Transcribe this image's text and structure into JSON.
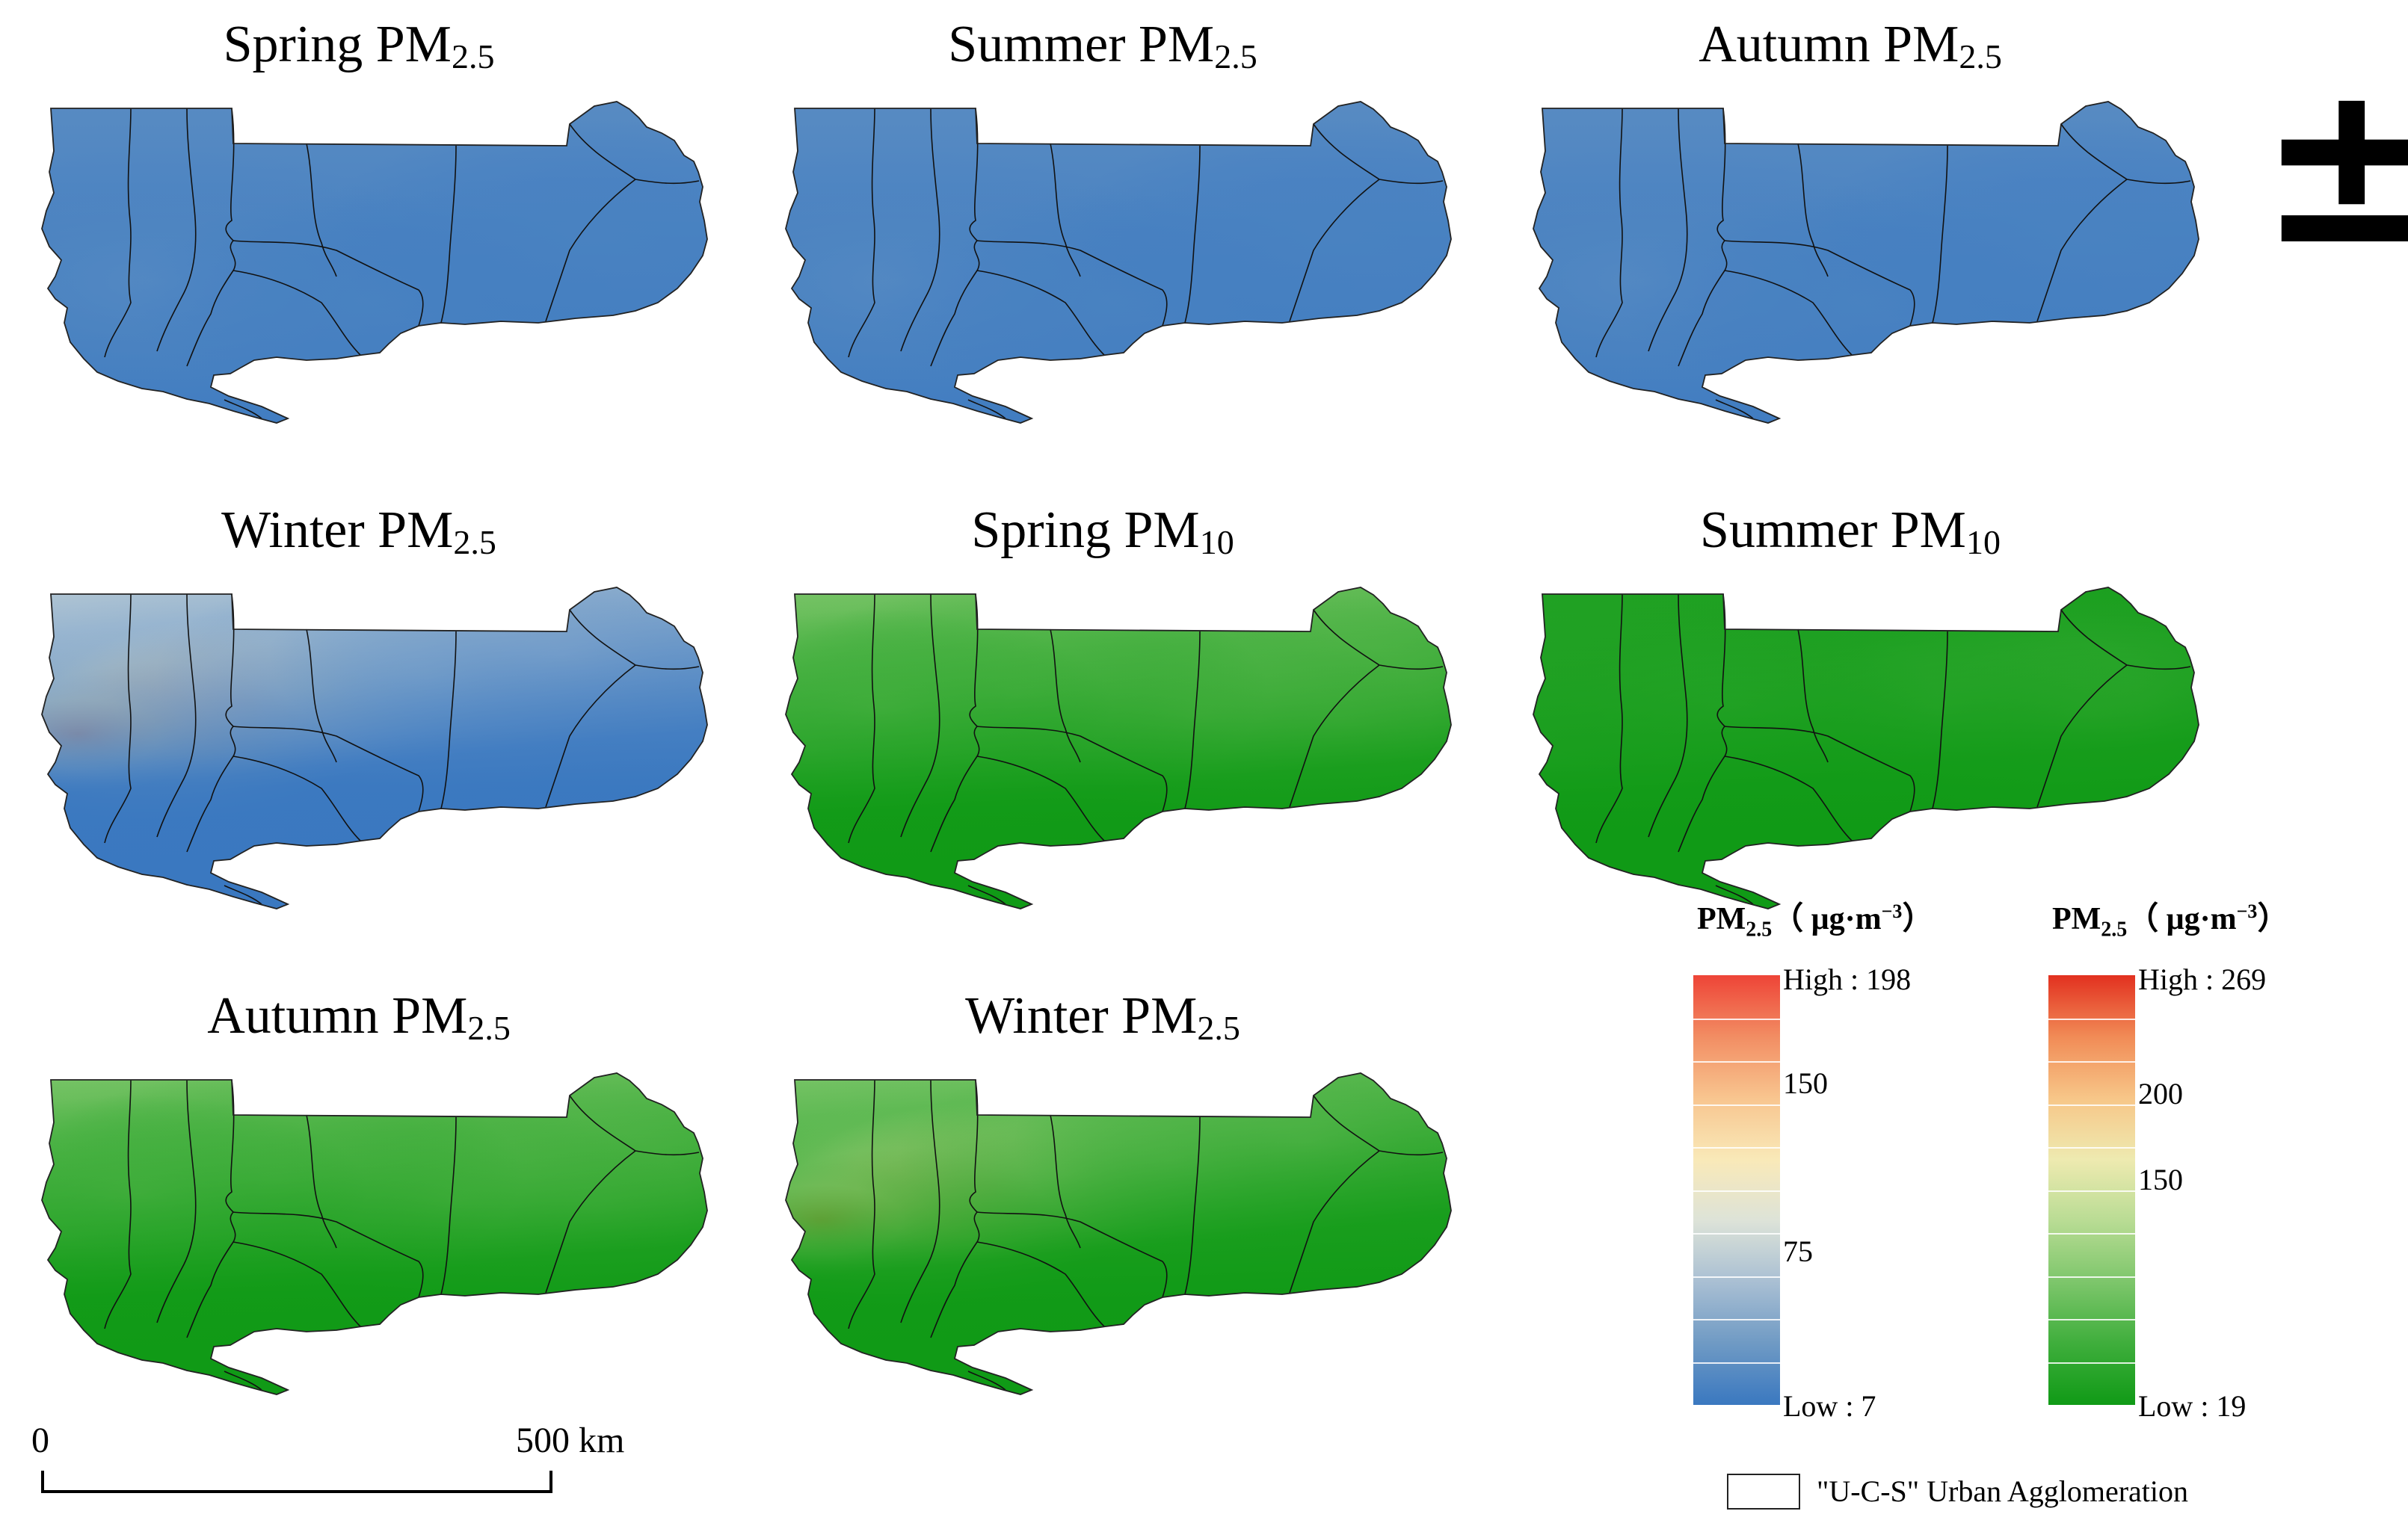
{
  "maps": [
    {
      "id": "spring-pm25",
      "title_main": "Spring PM",
      "title_sub": "2.5",
      "palette": "blue-red",
      "pattern": "uniform-low"
    },
    {
      "id": "summer-pm25",
      "title_main": "Summer PM",
      "title_sub": "2.5",
      "palette": "blue-red",
      "pattern": "uniform-low"
    },
    {
      "id": "autumn-pm25",
      "title_main": "Autumn PM",
      "title_sub": "2.5",
      "palette": "blue-red",
      "pattern": "uniform-low"
    },
    {
      "id": "winter-pm25",
      "title_main": "Winter PM",
      "title_sub": "2.5",
      "palette": "blue-red",
      "pattern": "winter-hotspot"
    },
    {
      "id": "spring-pm10",
      "title_main": "Spring PM",
      "title_sub": "10",
      "palette": "green-red",
      "pattern": "moderate"
    },
    {
      "id": "summer-pm10",
      "title_main": "Summer PM",
      "title_sub": "10",
      "palette": "green-red",
      "pattern": "low"
    },
    {
      "id": "autumn-pm10",
      "title_main": "Autumn PM",
      "title_sub": "2.5",
      "palette": "green-red",
      "pattern": "moderate"
    },
    {
      "id": "winter-pm10",
      "title_main": "Winter PM",
      "title_sub": "2.5",
      "palette": "green-red",
      "pattern": "winter-hotspot"
    }
  ],
  "legends": [
    {
      "id": "legend-pm25",
      "title_main": "PM",
      "title_sub": "2.5",
      "title_rest": "（ μg·m",
      "title_sup": "−3",
      "title_end": "）",
      "min": 7,
      "max": 198,
      "high_label": "High : 198",
      "low_label": "Low : 7",
      "ticks": [
        {
          "value": 150,
          "label": "150"
        },
        {
          "value": 75,
          "label": "75"
        }
      ],
      "colors": [
        "#3a78c0",
        "#6f9ac4",
        "#a9bfd3",
        "#dde3d8",
        "#f9e9b8",
        "#f8c58f",
        "#f28d63",
        "#ee4437"
      ]
    },
    {
      "id": "legend-pm10",
      "title_main": "PM",
      "title_sub": "2.5",
      "title_rest": "（ μg·m",
      "title_sup": "−3",
      "title_end": "）",
      "min": 19,
      "max": 269,
      "high_label": "High : 269",
      "low_label": "Low : 19",
      "ticks": [
        {
          "value": 200,
          "label": "200"
        },
        {
          "value": 150,
          "label": "150"
        }
      ],
      "colors": [
        "#109a16",
        "#3fae3c",
        "#7dc66b",
        "#b9dc94",
        "#eeeab0",
        "#f7c688",
        "#f18b56",
        "#e2301f"
      ]
    }
  ],
  "scale_bar": {
    "start_label": "0",
    "end_label": "500 km"
  },
  "north_arrow": {
    "glyph": "±"
  },
  "boundary_legend": {
    "label": "\"U-C-S\" Urban Agglomeration"
  }
}
